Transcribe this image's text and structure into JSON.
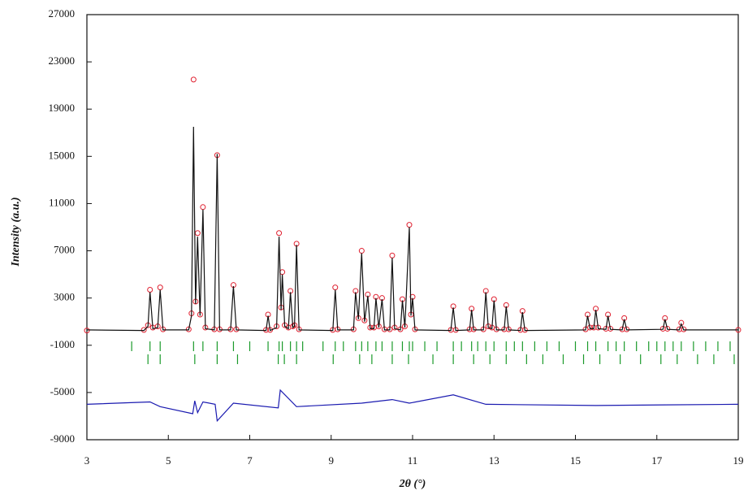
{
  "chart_data": {
    "type": "line",
    "xlabel": "2θ (°)",
    "ylabel": "Intensity (a.u.)",
    "xlim": [
      3,
      19
    ],
    "xticks": [
      3,
      5,
      7,
      9,
      11,
      13,
      15,
      17,
      19
    ],
    "ylim": [
      -9000,
      27000
    ],
    "yticks": [
      27000,
      23000,
      19000,
      15000,
      11000,
      7000,
      3000,
      -1000,
      -5000,
      -9000
    ],
    "series": [
      {
        "color": "#e02030",
        "marker": "circle",
        "x": [
          3,
          4.4,
          4.5,
          4.55,
          4.62,
          4.74,
          4.8,
          4.87,
          5.5,
          5.57,
          5.62,
          5.67,
          5.72,
          5.78,
          5.85,
          5.91,
          6.13,
          6.2,
          6.26,
          6.53,
          6.6,
          6.67,
          7.4,
          7.45,
          7.5,
          7.66,
          7.72,
          7.77,
          7.8,
          7.86,
          7.95,
          8.0,
          8.06,
          8.1,
          8.15,
          8.21,
          9.04,
          9.1,
          9.16,
          9.55,
          9.6,
          9.67,
          9.75,
          9.82,
          9.9,
          9.96,
          10.05,
          10.1,
          10.17,
          10.25,
          10.31,
          10.44,
          10.5,
          10.56,
          10.7,
          10.75,
          10.81,
          10.92,
          10.96,
          11.0,
          11.06,
          11.94,
          12.0,
          12.06,
          12.4,
          12.45,
          12.5,
          12.74,
          12.8,
          12.86,
          12.95,
          13.0,
          13.06,
          13.25,
          13.3,
          13.36,
          13.65,
          13.7,
          13.76,
          15.25,
          15.3,
          15.36,
          15.45,
          15.5,
          15.56,
          15.75,
          15.8,
          15.86,
          16.15,
          16.2,
          16.26,
          17.15,
          17.2,
          17.26,
          17.55,
          17.6,
          17.66,
          19
        ],
        "values": [
          250,
          300,
          700,
          3700,
          500,
          600,
          3900,
          350,
          350,
          1700,
          21500,
          2700,
          8500,
          1600,
          10700,
          500,
          350,
          15100,
          350,
          350,
          4100,
          350,
          300,
          1600,
          300,
          600,
          8500,
          2200,
          5200,
          700,
          500,
          3600,
          600,
          700,
          7600,
          350,
          300,
          3900,
          350,
          350,
          3600,
          1300,
          7000,
          1100,
          3300,
          500,
          500,
          3100,
          600,
          3000,
          350,
          350,
          6600,
          500,
          350,
          2900,
          600,
          9200,
          1600,
          3100,
          350,
          300,
          2300,
          300,
          350,
          2100,
          350,
          350,
          3600,
          600,
          500,
          2900,
          350,
          350,
          2400,
          350,
          300,
          1900,
          300,
          350,
          1600,
          500,
          500,
          2100,
          500,
          400,
          1600,
          400,
          350,
          1300,
          350,
          400,
          1300,
          400,
          350,
          900,
          350,
          300
        ]
      },
      {
        "color": "#111111",
        "marker": "none",
        "x": [
          3,
          4.4,
          4.5,
          4.55,
          4.62,
          4.74,
          4.8,
          4.87,
          5.5,
          5.57,
          5.62,
          5.67,
          5.72,
          5.78,
          5.85,
          5.91,
          6.13,
          6.2,
          6.26,
          6.53,
          6.6,
          6.67,
          7.4,
          7.45,
          7.5,
          7.66,
          7.72,
          7.77,
          7.8,
          7.86,
          7.95,
          8.0,
          8.06,
          8.1,
          8.15,
          8.21,
          9.04,
          9.1,
          9.16,
          9.55,
          9.6,
          9.67,
          9.75,
          9.82,
          9.9,
          9.96,
          10.05,
          10.1,
          10.17,
          10.25,
          10.31,
          10.44,
          10.5,
          10.56,
          10.7,
          10.75,
          10.81,
          10.92,
          10.96,
          11.0,
          11.06,
          11.94,
          12.0,
          12.06,
          12.4,
          12.45,
          12.5,
          12.74,
          12.8,
          12.86,
          12.95,
          13.0,
          13.06,
          13.25,
          13.3,
          13.36,
          13.65,
          13.7,
          13.76,
          15.25,
          15.3,
          15.36,
          15.45,
          15.5,
          15.56,
          15.75,
          15.8,
          15.86,
          16.15,
          16.2,
          16.26,
          17.15,
          17.2,
          17.26,
          17.55,
          17.6,
          17.66,
          19
        ],
        "values": [
          300,
          250,
          600,
          3500,
          400,
          500,
          3700,
          300,
          300,
          1500,
          17500,
          2500,
          8200,
          1500,
          10500,
          400,
          300,
          15200,
          300,
          300,
          4000,
          300,
          250,
          1500,
          250,
          500,
          8200,
          2000,
          5000,
          600,
          400,
          3500,
          500,
          600,
          7500,
          300,
          250,
          3700,
          300,
          300,
          3500,
          1200,
          6800,
          1000,
          3200,
          400,
          400,
          3000,
          500,
          2900,
          300,
          300,
          6400,
          400,
          300,
          2800,
          500,
          9000,
          1500,
          3000,
          300,
          250,
          2200,
          250,
          300,
          2000,
          300,
          300,
          3500,
          500,
          400,
          2800,
          300,
          300,
          2300,
          300,
          250,
          1800,
          250,
          300,
          1500,
          400,
          400,
          2000,
          400,
          350,
          1500,
          350,
          300,
          1200,
          300,
          350,
          1200,
          350,
          300,
          800,
          300,
          300
        ]
      },
      {
        "color": "#1a1ab0",
        "marker": "none",
        "x": [
          3,
          4.55,
          4.8,
          5.6,
          5.65,
          5.72,
          5.85,
          6.15,
          6.2,
          6.6,
          7.7,
          7.75,
          8.15,
          9.75,
          10.5,
          10.92,
          12.0,
          12.8,
          15.5,
          17.2,
          19
        ],
        "values": [
          -6000,
          -5800,
          -6200,
          -6800,
          -5700,
          -6700,
          -5800,
          -6000,
          -7400,
          -5900,
          -6300,
          -4800,
          -6200,
          -5900,
          -5600,
          -5900,
          -5200,
          -6000,
          -6100,
          -6050,
          -6000
        ]
      }
    ],
    "reflections": [
      {
        "color": "#1a9a2a",
        "x": [
          4.1,
          4.55,
          4.8,
          5.62,
          5.85,
          6.2,
          6.6,
          7.0,
          7.45,
          7.72,
          7.8,
          8.0,
          8.15,
          8.3,
          8.8,
          9.1,
          9.3,
          9.6,
          9.75,
          9.9,
          10.1,
          10.25,
          10.5,
          10.75,
          10.92,
          11.0,
          11.3,
          11.6,
          12.0,
          12.2,
          12.45,
          12.6,
          12.8,
          13.0,
          13.3,
          13.5,
          13.7,
          14.0,
          14.3,
          14.6,
          15.0,
          15.3,
          15.5,
          15.8,
          16.0,
          16.2,
          16.5,
          16.8,
          17.0,
          17.2,
          17.4,
          17.6,
          17.9,
          18.2,
          18.5,
          18.8
        ]
      },
      {
        "color": "#1a9a2a",
        "x": [
          4.5,
          4.8,
          5.65,
          6.2,
          6.7,
          7.7,
          7.85,
          8.15,
          9.05,
          9.7,
          10.0,
          10.5,
          10.9,
          11.5,
          12.0,
          12.5,
          12.9,
          13.3,
          13.8,
          14.2,
          14.7,
          15.2,
          15.6,
          16.1,
          16.6,
          17.1,
          17.5,
          18.0,
          18.4,
          18.9
        ]
      }
    ]
  }
}
